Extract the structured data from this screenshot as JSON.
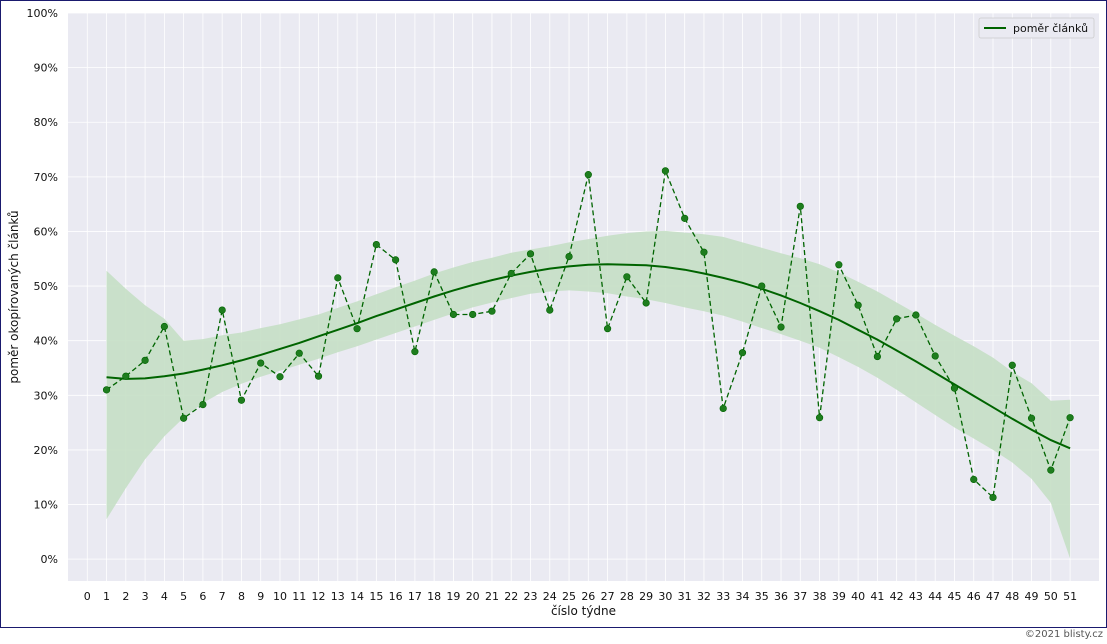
{
  "colors": {
    "plot_background": "#eaeaf2",
    "grid": "#ffffff",
    "line": "#006400",
    "marker": "#1e7d1e",
    "band": "#c5dfc5"
  },
  "chart_data": {
    "type": "line",
    "xlabel": "číslo týdne",
    "ylabel": "poměr okopírovaných článků",
    "xlim": [
      -1,
      52.5
    ],
    "ylim": [
      -4,
      100
    ],
    "x_ticks": [
      0,
      1,
      2,
      3,
      4,
      5,
      6,
      7,
      8,
      9,
      10,
      11,
      12,
      13,
      14,
      15,
      16,
      17,
      18,
      19,
      20,
      21,
      22,
      23,
      24,
      25,
      26,
      27,
      28,
      29,
      30,
      31,
      32,
      33,
      34,
      35,
      36,
      37,
      38,
      39,
      40,
      41,
      42,
      43,
      44,
      45,
      46,
      47,
      48,
      49,
      50,
      51
    ],
    "y_ticks": [
      0,
      10,
      20,
      30,
      40,
      50,
      60,
      70,
      80,
      90,
      100
    ],
    "y_tick_labels": [
      "0%",
      "10%",
      "20%",
      "30%",
      "40%",
      "50%",
      "60%",
      "70%",
      "80%",
      "90%",
      "100%"
    ],
    "grid": true,
    "legend": {
      "position": "top-right",
      "entries": [
        "poměr článků"
      ]
    },
    "series": [
      {
        "style": "dashed-markers",
        "x": [
          1,
          2,
          3,
          4,
          5,
          6,
          7,
          8,
          9,
          10,
          11,
          12,
          13,
          14,
          15,
          16,
          17,
          18,
          19,
          20,
          21,
          22,
          23,
          24,
          25,
          26,
          27,
          28,
          29,
          30,
          31,
          32,
          33,
          34,
          35,
          36,
          37,
          38,
          39,
          40,
          41,
          42,
          43,
          44,
          45,
          46,
          47,
          48,
          49,
          50,
          51
        ],
        "values": [
          31.0,
          33.5,
          36.4,
          42.6,
          25.8,
          28.3,
          45.6,
          29.1,
          35.9,
          33.4,
          37.7,
          33.5,
          51.5,
          42.2,
          57.6,
          54.8,
          38.0,
          52.6,
          44.8,
          44.8,
          45.4,
          52.3,
          55.9,
          45.6,
          55.4,
          70.4,
          42.2,
          51.7,
          46.9,
          71.1,
          62.4,
          56.2,
          27.6,
          37.8,
          50.0,
          42.5,
          64.6,
          25.9,
          53.9,
          46.5,
          37.1,
          44.0,
          44.7,
          37.2,
          31.3,
          14.6,
          11.3,
          35.5,
          25.8,
          16.3,
          25.9
        ]
      },
      {
        "name": "poměr článků",
        "style": "solid-trend",
        "x": [
          1,
          2,
          3,
          4,
          5,
          6,
          7,
          8,
          9,
          10,
          11,
          12,
          13,
          14,
          15,
          16,
          17,
          18,
          19,
          20,
          21,
          22,
          23,
          24,
          25,
          26,
          27,
          28,
          29,
          30,
          31,
          32,
          33,
          34,
          35,
          36,
          37,
          38,
          39,
          40,
          41,
          42,
          43,
          44,
          45,
          46,
          47,
          48,
          49,
          50,
          51
        ],
        "values": [
          33.3,
          33.0,
          33.1,
          33.5,
          34.0,
          34.7,
          35.5,
          36.4,
          37.4,
          38.5,
          39.6,
          40.8,
          42.0,
          43.2,
          44.5,
          45.7,
          46.9,
          48.1,
          49.2,
          50.2,
          51.1,
          51.9,
          52.6,
          53.2,
          53.6,
          53.9,
          54.0,
          53.9,
          53.8,
          53.5,
          53.0,
          52.3,
          51.5,
          50.6,
          49.5,
          48.3,
          46.9,
          45.4,
          43.8,
          42.0,
          40.2,
          38.2,
          36.2,
          34.1,
          32.0,
          29.9,
          27.8,
          25.7,
          23.7,
          21.8,
          20.3
        ],
        "band_lower": [
          7.3,
          13.0,
          18.3,
          22.5,
          25.9,
          28.6,
          30.6,
          32.1,
          33.4,
          34.5,
          35.6,
          36.7,
          37.9,
          39.0,
          40.2,
          41.4,
          42.6,
          43.8,
          45.0,
          46.1,
          47.0,
          47.8,
          48.6,
          49.0,
          49.2,
          49.0,
          48.7,
          48.1,
          47.6,
          46.9,
          46.1,
          45.4,
          44.6,
          43.5,
          42.3,
          41.2,
          40.0,
          38.7,
          37.0,
          35.2,
          33.2,
          31.0,
          28.7,
          26.4,
          24.1,
          22.1,
          20.0,
          17.7,
          14.7,
          10.3,
          0.1
        ],
        "band_upper": [
          52.8,
          49.5,
          46.5,
          44.0,
          40.0,
          40.3,
          41.0,
          41.5,
          42.3,
          43.0,
          43.9,
          44.8,
          46.0,
          47.2,
          48.5,
          49.8,
          51.0,
          52.3,
          53.4,
          54.4,
          55.2,
          56.1,
          56.7,
          57.3,
          58.0,
          58.6,
          59.2,
          59.7,
          60.0,
          60.1,
          59.8,
          59.5,
          59.0,
          58.0,
          57.0,
          56.0,
          55.1,
          54.0,
          52.5,
          50.8,
          49.0,
          47.0,
          45.0,
          42.9,
          40.9,
          39.0,
          36.9,
          34.3,
          32.2,
          29.0,
          29.2
        ]
      }
    ]
  },
  "footer": {
    "copyright": "©2021 blisty.cz"
  }
}
